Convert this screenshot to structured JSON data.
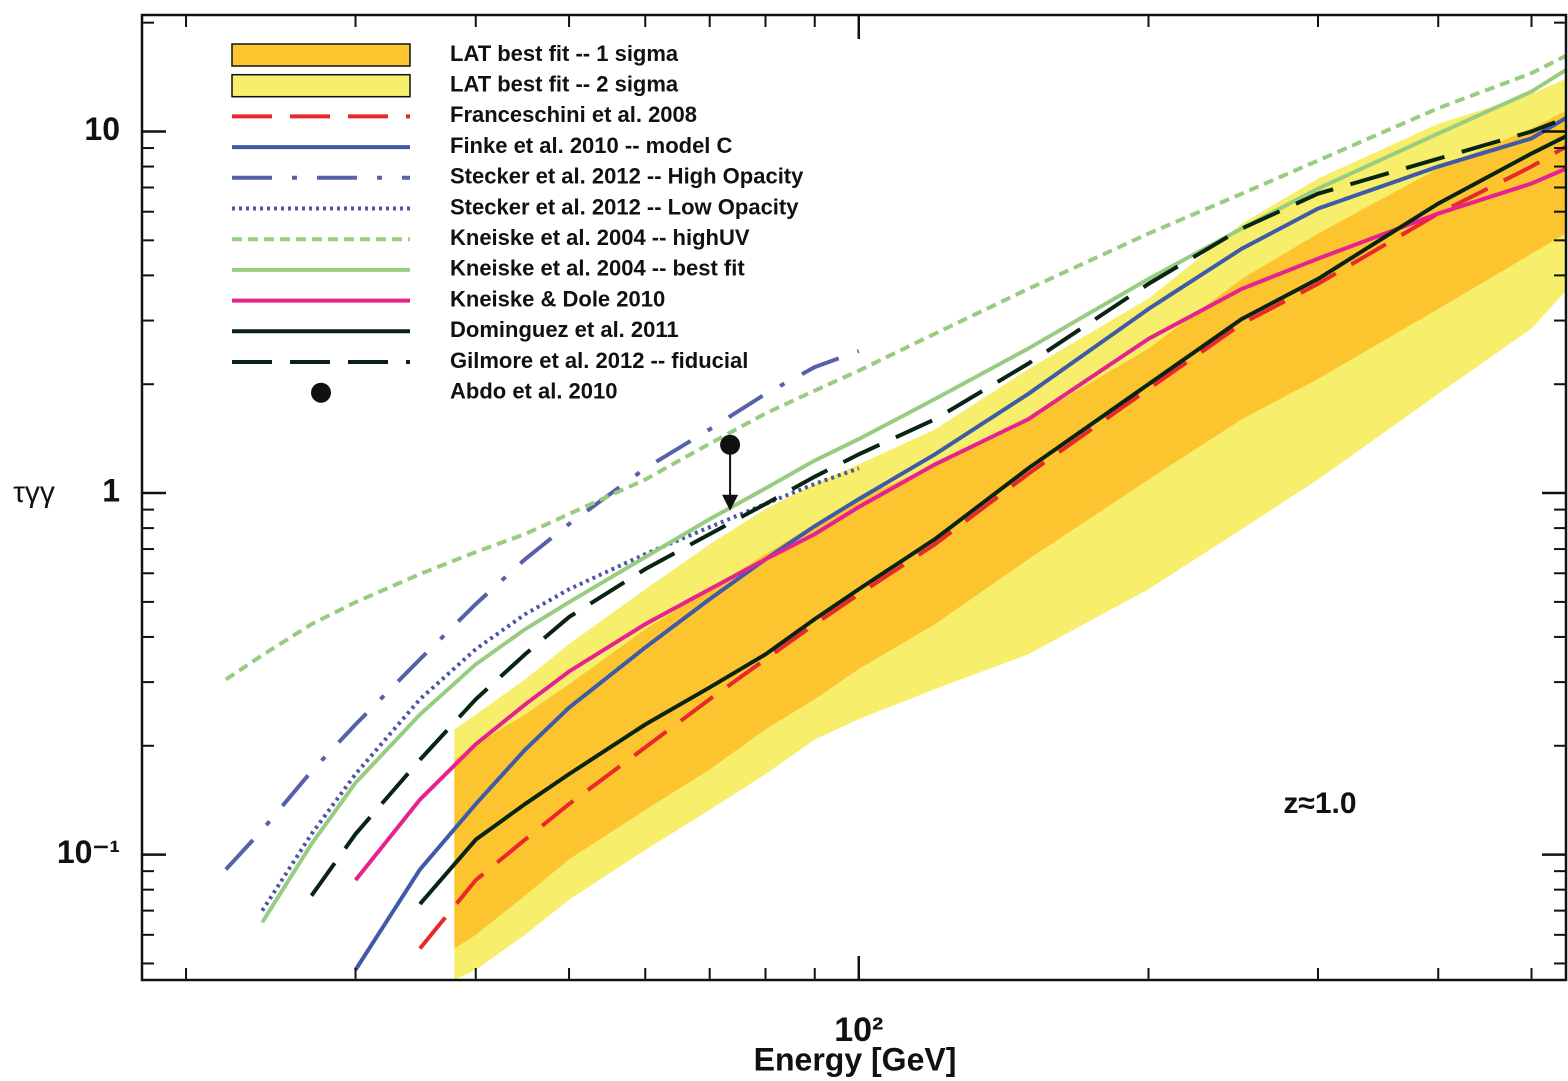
{
  "chart_data": {
    "type": "line",
    "xlabel": "Energy [GeV]",
    "ylabel": "τγγ",
    "annotation": {
      "text": "z≈1.0",
      "color": "#e8282a"
    },
    "xscale": "log",
    "yscale": "log",
    "xlim": [
      18,
      543
    ],
    "ylim": [
      0.045,
      21
    ],
    "xticks": [
      {
        "value": 100,
        "label": "10²"
      }
    ],
    "yticks": [
      {
        "value": 0.1,
        "label": "10⁻¹"
      },
      1,
      10
    ],
    "legend": "upper left",
    "bands": [
      {
        "name": "LAT best fit -- 2 sigma",
        "color": "#f7ee6b",
        "x": [
          38,
          40,
          45,
          50,
          60,
          70,
          80,
          90,
          100,
          120,
          150,
          200,
          250,
          300,
          400,
          500,
          543
        ],
        "lower": [
          0.045,
          0.048,
          0.06,
          0.075,
          0.103,
          0.133,
          0.167,
          0.208,
          0.237,
          0.287,
          0.358,
          0.542,
          0.795,
          1.09,
          1.88,
          2.85,
          3.63
        ],
        "upper": [
          0.222,
          0.244,
          0.305,
          0.382,
          0.542,
          0.722,
          0.903,
          1.06,
          1.2,
          1.5,
          2.2,
          3.45,
          5.56,
          7.41,
          10.5,
          12.7,
          14.0
        ]
      },
      {
        "name": "LAT best fit -- 1 sigma",
        "color": "#fcc52f",
        "x": [
          38,
          40,
          45,
          50,
          60,
          70,
          80,
          90,
          100,
          120,
          150,
          200,
          250,
          300,
          400,
          500,
          543
        ],
        "lower": [
          0.055,
          0.06,
          0.077,
          0.097,
          0.133,
          0.172,
          0.222,
          0.269,
          0.326,
          0.434,
          0.656,
          1.09,
          1.6,
          2.07,
          3.23,
          4.59,
          5.22
        ],
        "upper": [
          0.183,
          0.202,
          0.244,
          0.296,
          0.42,
          0.542,
          0.678,
          0.821,
          0.962,
          1.2,
          1.6,
          2.51,
          3.91,
          5.22,
          7.9,
          10.2,
          11.4
        ]
      }
    ],
    "x": [
      20,
      22,
      24,
      27,
      30,
      35,
      40,
      45,
      50,
      60,
      70,
      80,
      90,
      100,
      120,
      150,
      200,
      250,
      300,
      400,
      500,
      543
    ],
    "series": [
      {
        "name": "Franceschini et al. 2008",
        "color": "#e8282a",
        "dash": "long-dash",
        "values": [
          null,
          null,
          null,
          null,
          null,
          0.055,
          0.085,
          0.11,
          0.138,
          0.198,
          0.269,
          0.347,
          0.434,
          0.525,
          0.722,
          1.13,
          1.94,
          2.94,
          3.79,
          5.93,
          8.0,
          9.08
        ]
      },
      {
        "name": "Finke et al. 2010 -- model C",
        "color": "#3f5aa6",
        "dash": "solid",
        "values": [
          null,
          null,
          null,
          null,
          0.048,
          0.091,
          0.138,
          0.195,
          0.255,
          0.374,
          0.509,
          0.656,
          0.81,
          0.962,
          1.28,
          1.88,
          3.23,
          4.74,
          6.12,
          8.0,
          9.57,
          10.9
        ]
      },
      {
        "name": "Stecker et al. 2012 -- High Opacity",
        "color": "#5661a9",
        "dash": "dash-dot",
        "values": [
          null,
          0.091,
          0.117,
          0.17,
          0.229,
          0.347,
          0.493,
          0.656,
          0.821,
          1.17,
          1.5,
          1.88,
          2.23,
          2.47,
          null,
          null,
          null,
          null,
          null,
          null,
          null,
          null
        ]
      },
      {
        "name": "Stecker et al. 2012 -- Low Opacity",
        "color": "#4d55a6",
        "dash": "dotted",
        "values": [
          null,
          null,
          0.07,
          0.114,
          0.167,
          0.269,
          0.37,
          0.462,
          0.542,
          0.678,
          0.805,
          0.933,
          1.06,
          1.17,
          null,
          null,
          null,
          null,
          null,
          null,
          null,
          null
        ]
      },
      {
        "name": "Kneiske et al. 2004 -- highUV",
        "color": "#98cd81",
        "dash": "short-dash",
        "values": [
          null,
          0.305,
          0.356,
          0.434,
          0.499,
          0.597,
          0.687,
          0.77,
          0.875,
          1.09,
          1.37,
          1.66,
          1.92,
          2.18,
          2.76,
          3.67,
          5.22,
          6.73,
          8.31,
          11.6,
          14.5,
          16.2
        ]
      },
      {
        "name": "Kneiske et al. 2004 -- best fit",
        "color": "#98cd81",
        "dash": "solid",
        "values": [
          null,
          null,
          0.065,
          0.107,
          0.158,
          0.244,
          0.336,
          0.42,
          0.499,
          0.665,
          0.847,
          1.03,
          1.23,
          1.41,
          1.82,
          2.51,
          3.91,
          5.39,
          6.95,
          9.87,
          12.9,
          14.8
        ]
      },
      {
        "name": "Kneiske & Dole 2010",
        "color": "#e6228f",
        "dash": "solid",
        "values": [
          null,
          null,
          null,
          null,
          0.085,
          0.142,
          0.202,
          0.26,
          0.321,
          0.434,
          0.542,
          0.656,
          0.77,
          0.915,
          1.2,
          1.6,
          2.67,
          3.67,
          4.45,
          5.93,
          7.18,
          7.89
        ]
      },
      {
        "name": "Dominguez et al. 2011",
        "color": "#0a2414",
        "dash": "solid",
        "values": [
          null,
          null,
          null,
          null,
          null,
          0.073,
          0.11,
          0.138,
          0.167,
          0.229,
          0.29,
          0.358,
          0.448,
          0.542,
          0.746,
          1.17,
          2.0,
          3.03,
          3.91,
          6.32,
          8.69,
          9.7
        ]
      },
      {
        "name": "Gilmore et al. 2012 -- fiducial",
        "color": "#0a2414",
        "dash": "long-dash",
        "values": [
          null,
          null,
          null,
          0.077,
          0.114,
          0.183,
          0.269,
          0.358,
          0.454,
          0.616,
          0.77,
          0.933,
          1.11,
          1.28,
          1.6,
          2.28,
          3.79,
          5.39,
          6.73,
          8.41,
          10.0,
          10.9
        ]
      }
    ],
    "points": [
      {
        "name": "Abdo  et al. 2010",
        "color": "#111111",
        "x": [
          73.5
        ],
        "values": [
          1.36
        ],
        "upper_limit": true
      }
    ]
  }
}
